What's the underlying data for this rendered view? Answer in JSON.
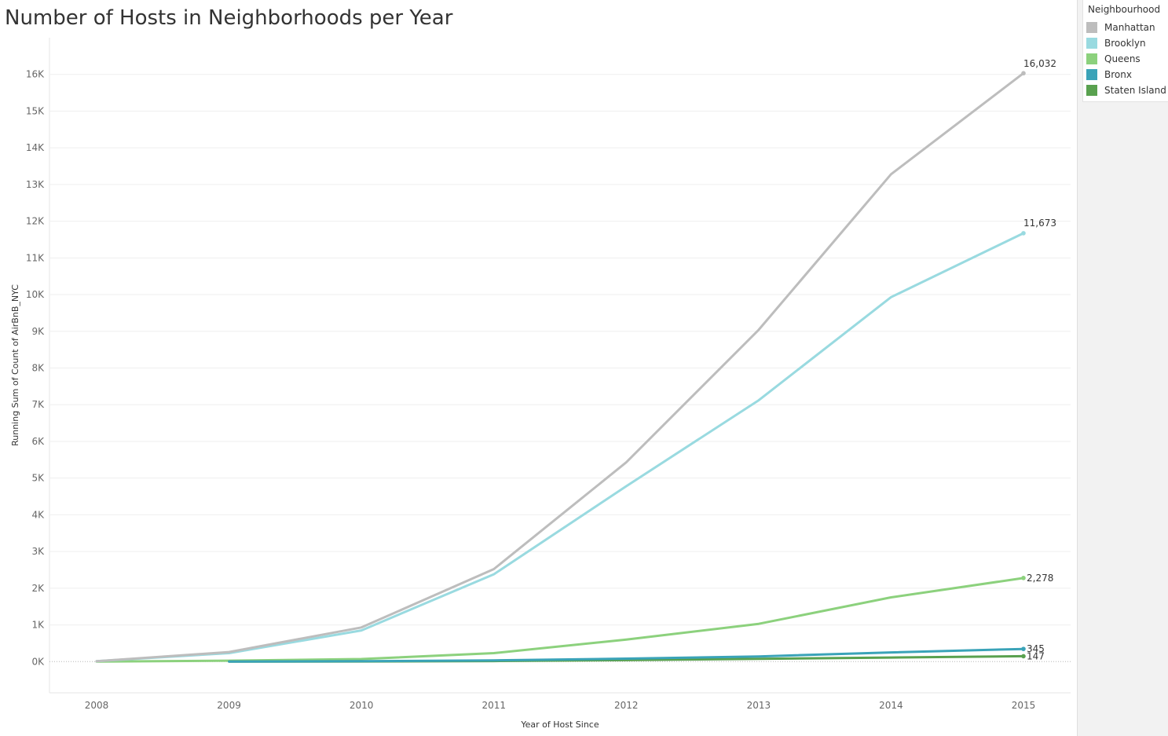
{
  "page": {
    "title": "Number of Hosts in Neighborhoods per Year"
  },
  "legend": {
    "title": "Neighbourhood",
    "items": [
      {
        "label": "Manhattan",
        "color": "#bdbdbd"
      },
      {
        "label": "Brooklyn",
        "color": "#99dae0"
      },
      {
        "label": "Queens",
        "color": "#8cd17d"
      },
      {
        "label": "Bronx",
        "color": "#3aa3b8"
      },
      {
        "label": "Staten Island",
        "color": "#59a14f"
      }
    ]
  },
  "chart_data": {
    "type": "line",
    "title": "Number of Hosts in Neighborhoods per Year",
    "xlabel": "Year of Host Since",
    "ylabel": "Running Sum of Count of AirBnB_NYC",
    "x": [
      2008,
      2009,
      2010,
      2011,
      2012,
      2013,
      2014,
      2015
    ],
    "ylim": [
      -850,
      17000
    ],
    "yticks": [
      0,
      1000,
      2000,
      3000,
      4000,
      5000,
      6000,
      7000,
      8000,
      9000,
      10000,
      11000,
      12000,
      13000,
      14000,
      15000,
      16000
    ],
    "ytick_labels": [
      "0K",
      "1K",
      "2K",
      "3K",
      "4K",
      "5K",
      "6K",
      "7K",
      "8K",
      "9K",
      "10K",
      "11K",
      "12K",
      "13K",
      "14K",
      "15K",
      "16K"
    ],
    "grid": true,
    "legend_position": "right",
    "series": [
      {
        "name": "Manhattan",
        "color": "#bdbdbd",
        "x": [
          2008,
          2009,
          2010,
          2011,
          2012,
          2013,
          2014,
          2015
        ],
        "values": [
          10,
          260,
          930,
          2520,
          5430,
          9040,
          13280,
          16032
        ],
        "end_label": "16,032"
      },
      {
        "name": "Brooklyn",
        "color": "#99dae0",
        "x": [
          2008,
          2009,
          2010,
          2011,
          2012,
          2013,
          2014,
          2015
        ],
        "values": [
          10,
          230,
          850,
          2380,
          4780,
          7120,
          9930,
          11673
        ],
        "end_label": "11,673"
      },
      {
        "name": "Queens",
        "color": "#8cd17d",
        "x": [
          2008,
          2009,
          2010,
          2011,
          2012,
          2013,
          2014,
          2015
        ],
        "values": [
          0,
          25,
          70,
          230,
          600,
          1030,
          1750,
          2278
        ],
        "end_label": "2,278"
      },
      {
        "name": "Bronx",
        "color": "#3aa3b8",
        "x": [
          2009,
          2010,
          2011,
          2012,
          2013,
          2014,
          2015
        ],
        "values": [
          0,
          10,
          35,
          80,
          140,
          250,
          345
        ],
        "end_label": "345"
      },
      {
        "name": "Staten Island",
        "color": "#59a14f",
        "x": [
          2009,
          2010,
          2011,
          2012,
          2013,
          2014,
          2015
        ],
        "values": [
          0,
          5,
          15,
          40,
          75,
          110,
          147
        ],
        "end_label": "147"
      }
    ]
  }
}
